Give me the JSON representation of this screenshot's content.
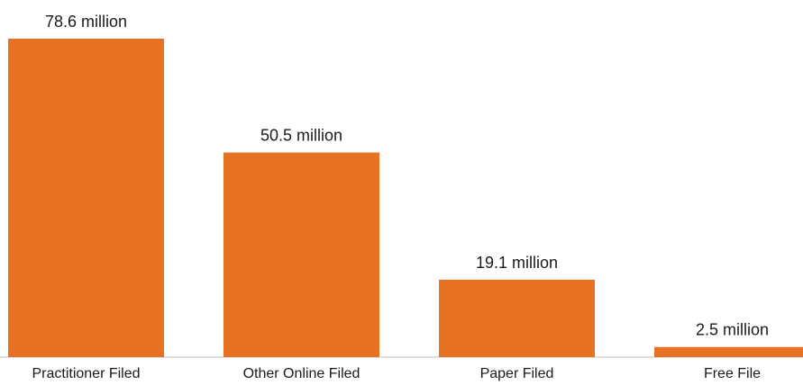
{
  "chart_data": {
    "type": "bar",
    "categories": [
      "Practitioner Filed",
      "Other Online Filed",
      "Paper Filed",
      "Free File"
    ],
    "values": [
      78.6,
      50.5,
      19.1,
      2.5
    ],
    "data_labels": [
      "78.6 million",
      "50.5 million",
      "19.1 million",
      "2.5 million"
    ],
    "title": "",
    "xlabel": "",
    "ylabel": "",
    "ylim": [
      0,
      78.6
    ],
    "grid": false,
    "legend": "none",
    "bar_color": "#E87224",
    "baseline_color": "#bfbfbf"
  }
}
